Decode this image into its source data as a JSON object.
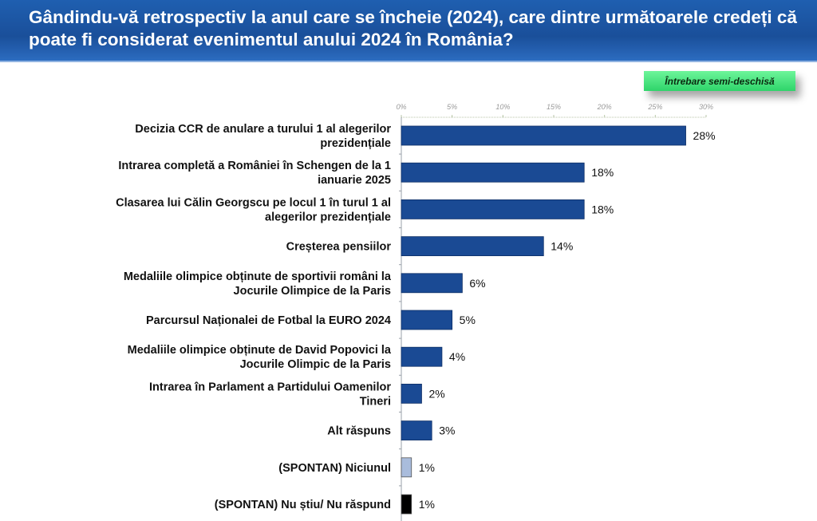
{
  "title": "Gândindu-vă retrospectiv la anul care se încheie (2024), care dintre următoarele credeți că poate fi considerat evenimentul anului 2024 în România?",
  "badge": "Întrebare semi-deschisă",
  "chart_data": {
    "type": "bar",
    "orientation": "horizontal",
    "categories": [
      [
        "Decizia CCR de anulare a turului 1 al alegerilor",
        "prezidențiale"
      ],
      [
        "Intrarea completă a României în Schengen de la 1",
        "ianuarie 2025"
      ],
      [
        "Clasarea lui Călin Georgscu pe locul 1 în turul 1 al",
        "alegerilor prezidențiale"
      ],
      [
        "Creșterea pensiilor"
      ],
      [
        "Medaliile olimpice obținute de sportivii români la",
        "Jocurile Olimpice de la Paris"
      ],
      [
        "Parcursul Naționalei de Fotbal la EURO 2024"
      ],
      [
        "Medaliile olimpice obținute de David Popovici la",
        "Jocurile Olimpic de la Paris"
      ],
      [
        "Intrarea în Parlament a Partidului Oamenilor",
        "Tineri"
      ],
      [
        "Alt răspuns"
      ],
      [
        "(SPONTAN) Niciunul"
      ],
      [
        "(SPONTAN) Nu știu/ Nu răspund"
      ]
    ],
    "values": [
      28,
      18,
      18,
      14,
      6,
      5,
      4,
      2,
      3,
      1,
      1
    ],
    "data_labels": [
      "28%",
      "18%",
      "18%",
      "14%",
      "6%",
      "5%",
      "4%",
      "2%",
      "3%",
      "1%",
      "1%"
    ],
    "colors": [
      "#1a4a94",
      "#1a4a94",
      "#1a4a94",
      "#1a4a94",
      "#1a4a94",
      "#1a4a94",
      "#1a4a94",
      "#1a4a94",
      "#1a4a94",
      "#a9bcdc",
      "#000000"
    ],
    "xlim": [
      0,
      30
    ],
    "x_ticks": [
      "0%",
      "5%",
      "10%",
      "15%",
      "20%",
      "25%",
      "30%"
    ],
    "axis_position": "top",
    "grid": false
  }
}
